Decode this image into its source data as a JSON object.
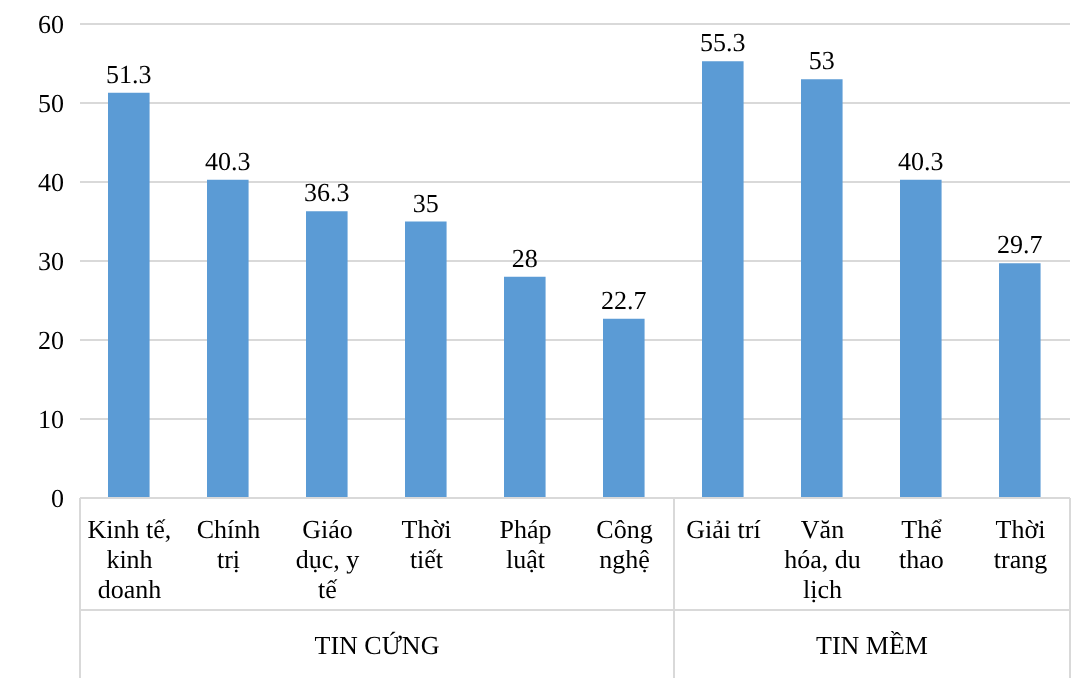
{
  "chart_data": {
    "type": "bar",
    "categories": [
      "Kinh tế, kinh doanh",
      "Chính trị",
      "Giáo dục, y tế",
      "Thời tiết",
      "Pháp luật",
      "Công nghệ",
      "Giải trí",
      "Văn hóa, du lịch",
      "Thể thao",
      "Thời trang"
    ],
    "values": [
      51.3,
      40.3,
      36.3,
      35,
      28,
      22.7,
      55.3,
      53,
      40.3,
      29.7
    ],
    "color": "#5b9bd5",
    "ylim": [
      0,
      60
    ],
    "yticks": [
      0,
      10,
      20,
      30,
      40,
      50,
      60
    ],
    "grid": "y",
    "data_labels": true,
    "annotations": [
      "TIN CỨNG",
      "TIN MỀM"
    ]
  }
}
